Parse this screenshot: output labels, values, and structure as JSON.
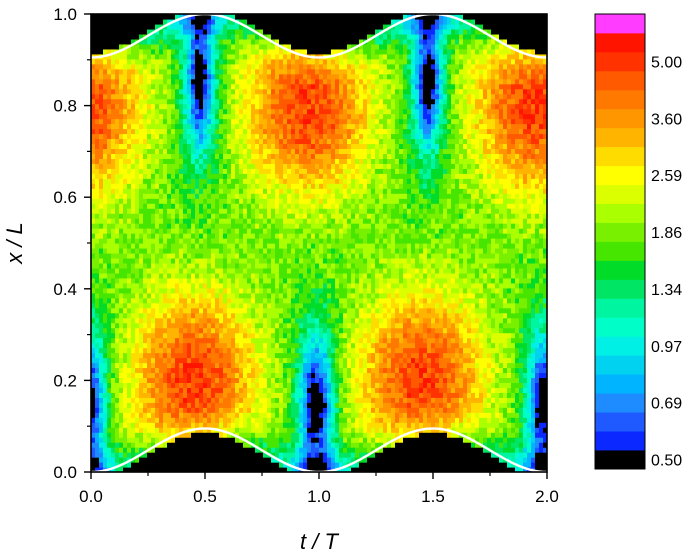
{
  "chart_data": {
    "type": "heatmap",
    "xlabel": "t / T",
    "ylabel": "x / L",
    "xlim": [
      0.0,
      2.0
    ],
    "ylim": [
      0.0,
      1.0
    ],
    "x_ticks": [
      "0.0",
      "0.5",
      "1.0",
      "1.5",
      "2.0"
    ],
    "y_ticks": [
      "0.0",
      "0.2",
      "0.4",
      "0.6",
      "0.8",
      "1.0"
    ],
    "colorbar": {
      "scale": "log",
      "range": [
        0.5,
        5.6
      ],
      "labels": [
        "0.50",
        "0.69",
        "0.97",
        "1.34",
        "1.86",
        "2.59",
        "3.60",
        "5.00"
      ],
      "colors": [
        "#000000",
        "#0a28ff",
        "#1e5aff",
        "#1e8cff",
        "#00b4ff",
        "#00d2f0",
        "#00f0e6",
        "#00ffc8",
        "#00f5a0",
        "#00e664",
        "#00dc28",
        "#46e600",
        "#78f000",
        "#aaff00",
        "#dcff00",
        "#ffff00",
        "#ffdc00",
        "#ffb400",
        "#ff9600",
        "#ff7800",
        "#ff5a00",
        "#ff3200",
        "#ff1400",
        "#ff3cff"
      ]
    },
    "boundaries": [
      {
        "name": "upper wall",
        "color": "#ffffff",
        "t": [
          0.0,
          0.25,
          0.5,
          0.75,
          1.0,
          1.25,
          1.5,
          1.75,
          2.0
        ],
        "x": [
          0.905,
          0.953,
          1.0,
          0.953,
          0.905,
          0.953,
          1.0,
          0.953,
          0.905
        ]
      },
      {
        "name": "lower wall",
        "color": "#ffffff",
        "t": [
          0.0,
          0.25,
          0.5,
          0.75,
          1.0,
          1.25,
          1.5,
          1.75,
          2.0
        ],
        "x": [
          0.0,
          0.047,
          0.095,
          0.047,
          0.0,
          0.047,
          0.095,
          0.047,
          0.0
        ]
      }
    ],
    "density_features": [
      {
        "t_center": 0.43,
        "x_center": 0.16,
        "level": 4.3
      },
      {
        "t_center": 1.43,
        "x_center": 0.16,
        "level": 4.3
      },
      {
        "t_center": 0.95,
        "x_center": 0.86,
        "level": 4.3
      },
      {
        "t_center": 1.95,
        "x_center": 0.86,
        "level": 4.3
      },
      {
        "t_center": 0.0,
        "x_center": 0.86,
        "level": 3.9
      }
    ]
  }
}
